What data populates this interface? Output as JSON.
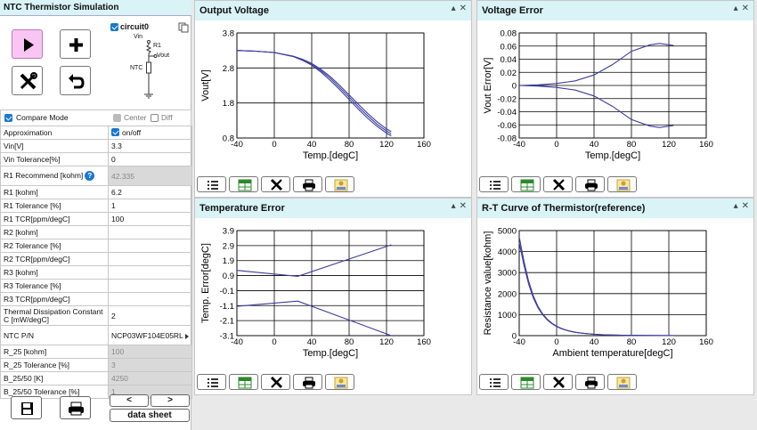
{
  "app": {
    "title": "NTC Thermistor Simulation"
  },
  "circuit": {
    "checkbox_label": "circuit0",
    "labels": {
      "vin": "Vin",
      "r1": "R1",
      "vout": "Vout",
      "ntc": "NTC"
    }
  },
  "compare": {
    "mode_label": "Compare Mode",
    "center_label": "Center",
    "diff_label": "Diff"
  },
  "params": [
    {
      "key": "Approximation",
      "value": "on/off",
      "type": "checkbox"
    },
    {
      "key": "Vin[V]",
      "value": "3.3"
    },
    {
      "key": "Vin Tolerance[%]",
      "value": "0"
    },
    {
      "key": "R1 Recommend [kohm]",
      "value": "42.335",
      "readonly": true,
      "help": true,
      "tall": true
    },
    {
      "key": "R1 [kohm]",
      "value": "6.2"
    },
    {
      "key": "R1 Tolerance [%]",
      "value": "1"
    },
    {
      "key": "R1 TCR[ppm/degC]",
      "value": "100"
    },
    {
      "key": "R2 [kohm]",
      "value": ""
    },
    {
      "key": "R2 Tolerance [%]",
      "value": ""
    },
    {
      "key": "R2 TCR[ppm/degC]",
      "value": ""
    },
    {
      "key": "R3 [kohm]",
      "value": ""
    },
    {
      "key": "R3 Tolerance [%]",
      "value": ""
    },
    {
      "key": "R3 TCR[ppm/degC]",
      "value": ""
    },
    {
      "key": "Thermal Dissipation Constant C [mW/degC]",
      "value": "2",
      "tall": true
    },
    {
      "key": "NTC P/N",
      "value": "NCP03WF104E05RL",
      "type": "select",
      "tall": true
    },
    {
      "key": "R_25 [kohm]",
      "value": "100",
      "readonly": true
    },
    {
      "key": "R_25 Tolerance [%]",
      "value": "3",
      "readonly": true
    },
    {
      "key": "B_25/50 [K]",
      "value": "4250",
      "readonly": true
    },
    {
      "key": "B_25/50 Tolerance [%]",
      "value": "1",
      "readonly": true
    }
  ],
  "buttons": {
    "prev": "<",
    "next": ">",
    "datasheet": "data sheet"
  },
  "panel_controls": {
    "minimize": "▴",
    "close": "✕"
  },
  "icons": [
    "play-icon",
    "plus-icon",
    "tools-icon",
    "undo-icon",
    "save-icon",
    "print-icon",
    "list-icon",
    "table-icon",
    "tools-icon",
    "print-icon",
    "image-icon"
  ],
  "colors": {
    "header_bg": "#d9f3f7",
    "run_button": "#f9c6f3",
    "line": "#3c3c9e"
  },
  "chart_data": [
    {
      "id": "output-voltage",
      "title": "Output Voltage",
      "type": "line",
      "xlabel": "Temp.[degC]",
      "ylabel": "Vout[V]",
      "xlim": [
        -40,
        160
      ],
      "ylim": [
        0.8,
        3.8
      ],
      "xticks": [
        "-40",
        "0",
        "40",
        "80",
        "120",
        "160"
      ],
      "yticks": [
        "0.8",
        "1.8",
        "2.8",
        "3.8"
      ],
      "yticks_values": [
        0.8,
        1.8,
        2.8,
        3.8
      ],
      "x": [
        -40,
        -20,
        0,
        20,
        30,
        40,
        50,
        60,
        70,
        80,
        90,
        100,
        110,
        120,
        125
      ],
      "series": [
        {
          "values": [
            3.3,
            3.28,
            3.24,
            3.14,
            3.05,
            2.93,
            2.76,
            2.55,
            2.3,
            2.03,
            1.76,
            1.5,
            1.26,
            1.06,
            0.98
          ]
        },
        {
          "values": [
            3.3,
            3.28,
            3.24,
            3.13,
            3.03,
            2.9,
            2.72,
            2.5,
            2.24,
            1.97,
            1.69,
            1.43,
            1.19,
            1.0,
            0.92
          ]
        },
        {
          "values": [
            3.3,
            3.28,
            3.24,
            3.13,
            3.02,
            2.88,
            2.68,
            2.44,
            2.18,
            1.9,
            1.62,
            1.36,
            1.13,
            0.94,
            0.86
          ]
        }
      ]
    },
    {
      "id": "voltage-error",
      "title": "Voltage Error",
      "type": "line",
      "xlabel": "Temp.[degC]",
      "ylabel": "Vout Error[V]",
      "xlim": [
        -40,
        160
      ],
      "ylim": [
        -0.08,
        0.08
      ],
      "xticks": [
        "-40",
        "0",
        "40",
        "80",
        "120",
        "160"
      ],
      "yticks": [
        "-0.08",
        "-0.06",
        "-0.04",
        "-0.02",
        "0",
        "0.02",
        "0.04",
        "0.06",
        "0.08"
      ],
      "yticks_values": [
        -0.08,
        -0.06,
        -0.04,
        -0.02,
        0,
        0.02,
        0.04,
        0.06,
        0.08
      ],
      "x": [
        -40,
        -20,
        0,
        20,
        40,
        60,
        80,
        100,
        110,
        120,
        125
      ],
      "series": [
        {
          "values": [
            0,
            0.001,
            0.003,
            0.007,
            0.016,
            0.032,
            0.052,
            0.062,
            0.064,
            0.062,
            0.061
          ]
        },
        {
          "values": [
            0,
            -0.001,
            -0.003,
            -0.007,
            -0.016,
            -0.032,
            -0.052,
            -0.062,
            -0.064,
            -0.062,
            -0.061
          ]
        }
      ]
    },
    {
      "id": "temperature-error",
      "title": "Temperature Error",
      "type": "line",
      "xlabel": "Temp.[degC]",
      "ylabel": "Temp. Error[degC]",
      "xlim": [
        -40,
        160
      ],
      "ylim": [
        -3.1,
        3.9
      ],
      "xticks": [
        "-40",
        "0",
        "40",
        "80",
        "120",
        "160"
      ],
      "yticks": [
        "-3.1",
        "-2.1",
        "-1.1",
        "-0.1",
        "0.9",
        "1.9",
        "2.9",
        "3.9"
      ],
      "yticks_values": [
        -3.1,
        -2.1,
        -1.1,
        -0.1,
        0.9,
        1.9,
        2.9,
        3.9
      ],
      "x": [
        -40,
        25,
        125
      ],
      "series": [
        {
          "values": [
            1.25,
            0.85,
            2.95
          ]
        },
        {
          "values": [
            -1.15,
            -0.8,
            -3.1
          ]
        }
      ]
    },
    {
      "id": "rt-curve",
      "title": "R-T Curve of Thermistor(reference)",
      "type": "line",
      "xlabel": "Ambient temperature[degC]",
      "ylabel": "Resistance value[kohm]",
      "xlim": [
        -40,
        160
      ],
      "ylim": [
        0,
        5000
      ],
      "xticks": [
        "-40",
        "0",
        "40",
        "80",
        "120",
        "160"
      ],
      "yticks": [
        "0",
        "1000",
        "2000",
        "3000",
        "4000",
        "5000"
      ],
      "yticks_values": [
        0,
        1000,
        2000,
        3000,
        4000,
        5000
      ],
      "x": [
        -40,
        -35,
        -30,
        -25,
        -20,
        -15,
        -10,
        -5,
        0,
        5,
        10,
        15,
        20,
        25,
        30,
        40,
        50,
        60,
        70,
        80,
        100,
        125
      ],
      "series": [
        {
          "values": [
            4700,
            3550,
            2600,
            1900,
            1400,
            1040,
            780,
            590,
            450,
            345,
            266,
            207,
            162,
            130,
            104,
            66,
            43,
            29,
            20,
            14,
            7,
            3
          ]
        },
        {
          "values": [
            4430,
            3350,
            2460,
            1800,
            1330,
            990,
            745,
            565,
            432,
            332,
            257,
            201,
            158,
            127,
            101,
            64,
            42,
            28,
            19,
            13,
            7,
            3
          ]
        }
      ]
    }
  ]
}
